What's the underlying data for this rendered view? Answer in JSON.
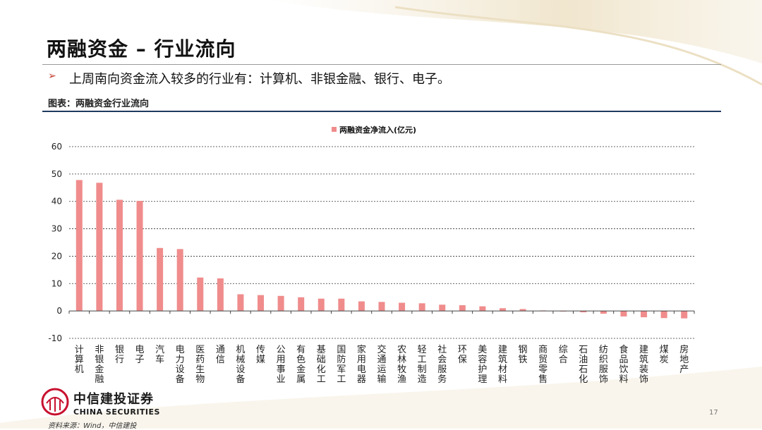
{
  "page": {
    "title": "两融资金 – 行业流向",
    "bullet": "➢",
    "subtitle": "上周南向资金流入较多的行业有：计算机、非银金融、银行、电子。",
    "chart_caption": "图表：两融资金行业流向",
    "logo_cn": "中信建投证券",
    "logo_en": "CHINA SECURITIES",
    "source": "资料来源：Wind，中信建投",
    "page_number": "17"
  },
  "colors": {
    "bar": "#f08c8c",
    "grid": "#333333",
    "caption_rule": "#1f3a5f",
    "logo_red": "#c8102e"
  },
  "chart_data": {
    "type": "bar",
    "legend_label": "两融资金净流入(亿元)",
    "legend_position": "top-center",
    "ylim": [
      -10,
      60
    ],
    "yticks": [
      60,
      50,
      40,
      30,
      20,
      10,
      0,
      -10
    ],
    "grid": true,
    "categories": [
      "计算机",
      "非银金融",
      "银行",
      "电子",
      "汽车",
      "电力设备",
      "医药生物",
      "通信",
      "机械设备",
      "传媒",
      "公用事业",
      "有色金属",
      "基础化工",
      "国防军工",
      "家用电器",
      "交通运输",
      "农林牧渔",
      "轻工制造",
      "社会服务",
      "环保",
      "美容护理",
      "建筑材料",
      "钢铁",
      "商贸零售",
      "综合",
      "石油石化",
      "纺织服饰",
      "食品饮料",
      "建筑装饰",
      "煤炭",
      "房地产"
    ],
    "values": [
      47.8,
      46.8,
      40.6,
      40.2,
      23.0,
      22.6,
      12.2,
      11.9,
      6.1,
      5.8,
      5.5,
      5.0,
      4.5,
      4.5,
      3.5,
      3.3,
      3.0,
      2.8,
      2.3,
      2.1,
      1.7,
      1.0,
      0.7,
      0.2,
      -0.2,
      -0.5,
      -1.0,
      -2.0,
      -2.3,
      -2.6,
      -2.7
    ]
  }
}
